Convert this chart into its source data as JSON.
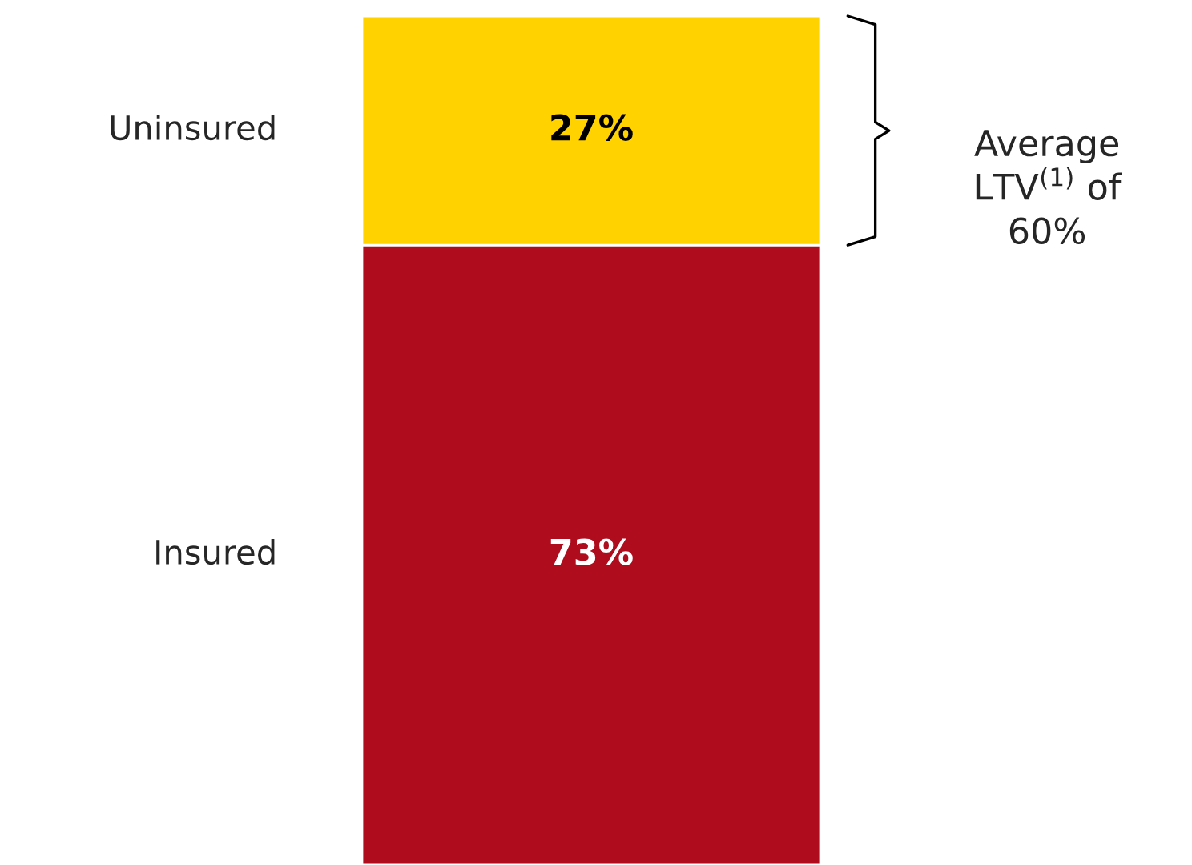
{
  "chart_data": {
    "type": "bar",
    "stacked": true,
    "categories": [
      null
    ],
    "ylim": [
      0,
      100
    ],
    "tick_labels": false,
    "legend": false,
    "series": [
      {
        "name": "Insured",
        "color": "#af0d1e",
        "values": [
          73
        ],
        "value_labels": [
          "73%"
        ]
      },
      {
        "name": "Uninsured",
        "color": "#ffd200",
        "values": [
          27
        ],
        "value_labels": [
          "27%"
        ]
      }
    ],
    "annotations": [
      "Average\nLTV$^{(1)}$ of\n60%"
    ]
  }
}
